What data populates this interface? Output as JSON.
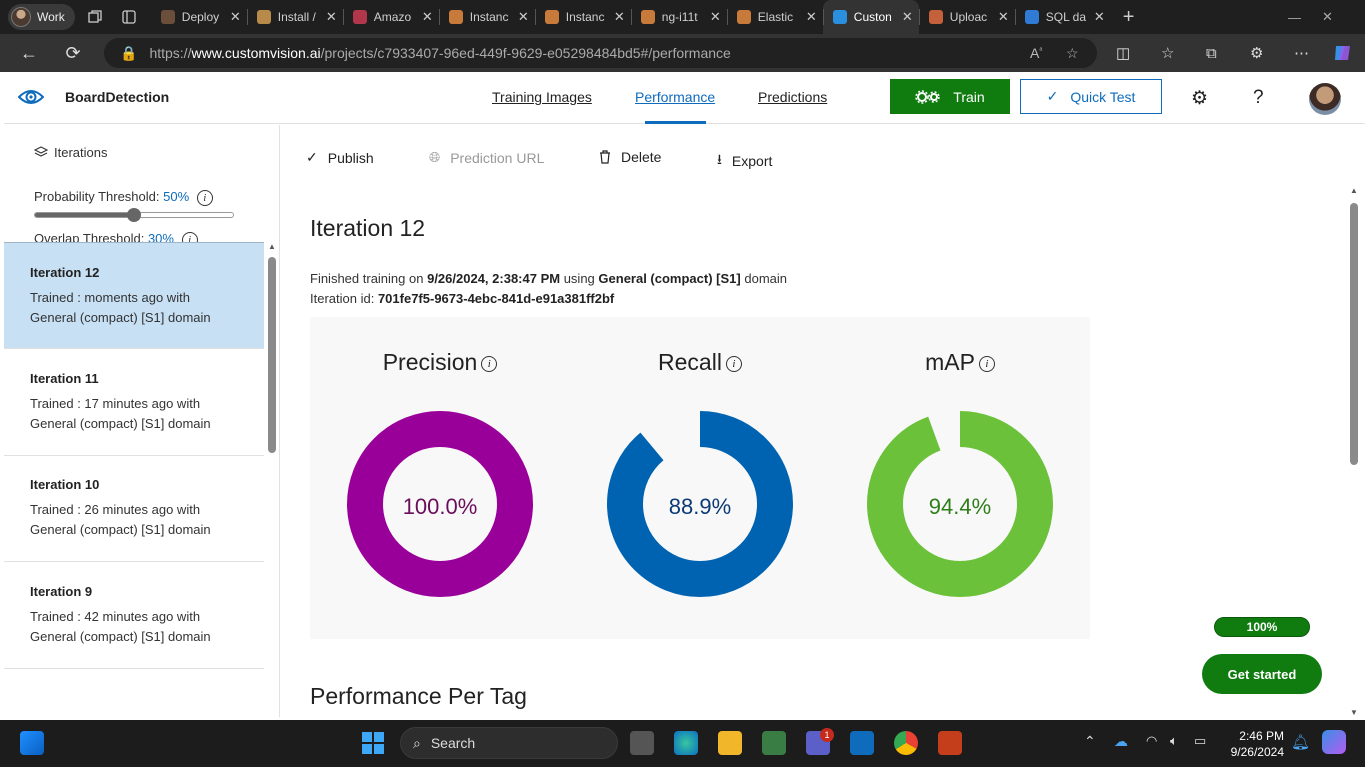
{
  "browser": {
    "profile_label": "Work",
    "tabs": [
      {
        "title": "Deploy",
        "color": "#6b4f3a"
      },
      {
        "title": "Install /",
        "color": "#b88a4a"
      },
      {
        "title": "Amazo",
        "color": "#b2374a"
      },
      {
        "title": "Instanc",
        "color": "#c77a3a"
      },
      {
        "title": "Instanc",
        "color": "#c77a3a"
      },
      {
        "title": "ng-i11t",
        "color": "#c77a3a"
      },
      {
        "title": "Elastic",
        "color": "#c77a3a"
      },
      {
        "title": "Custon",
        "color": "#2b8fe0"
      },
      {
        "title": "Uploac",
        "color": "#c4603a"
      },
      {
        "title": "SQL da",
        "color": "#2f7bd6"
      }
    ],
    "active_tab_index": 7,
    "url": {
      "prefix": "https://",
      "host": "www.customvision.ai",
      "path": "/projects/c7933407-96ed-449f-9629-e05298484bd5#/performance"
    }
  },
  "header": {
    "project_name": "BoardDetection",
    "nav": {
      "training_images": "Training Images",
      "performance": "Performance",
      "predictions": "Predictions"
    },
    "train_label": "Train",
    "quick_test_label": "Quick Test",
    "help_label": "?"
  },
  "sidebar": {
    "iterations_label": "Iterations",
    "probability": {
      "label": "Probability Threshold:",
      "value": "50%",
      "fraction": 0.5
    },
    "overlap": {
      "label": "Overlap Threshold:",
      "value": "30%",
      "fraction": 0.3
    },
    "iterations": [
      {
        "name": "Iteration 12",
        "line1": "Trained : moments ago with",
        "line2": "General (compact) [S1] domain",
        "selected": true
      },
      {
        "name": "Iteration 11",
        "line1": "Trained : 17 minutes ago with",
        "line2": "General (compact) [S1] domain",
        "selected": false
      },
      {
        "name": "Iteration 10",
        "line1": "Trained : 26 minutes ago with",
        "line2": "General (compact) [S1] domain",
        "selected": false
      },
      {
        "name": "Iteration 9",
        "line1": "Trained : 42 minutes ago with",
        "line2": "General (compact) [S1] domain",
        "selected": false
      }
    ]
  },
  "toolbar": {
    "publish": "Publish",
    "prediction_url": "Prediction URL",
    "delete": "Delete",
    "export": "Export"
  },
  "main": {
    "iteration_title": "Iteration 12",
    "finished_prefix": "Finished training on",
    "finished_date": "9/26/2024, 2:38:47 PM",
    "using_word": "using",
    "domain_name": "General (compact) [S1]",
    "domain_word": "domain",
    "iteration_id_label": "Iteration id:",
    "iteration_id": "701fe7f5-9673-4ebc-841d-e91a381ff2bf",
    "metrics": [
      {
        "label": "Precision",
        "value_text": "100.0%",
        "fraction": 1.0,
        "color": "#990099",
        "text_color": "#6a0d5a"
      },
      {
        "label": "Recall",
        "value_text": "88.9%",
        "fraction": 0.889,
        "color": "#0063b1",
        "text_color": "#0b3a75"
      },
      {
        "label": "mAP",
        "value_text": "94.4%",
        "fraction": 0.944,
        "color": "#6bc23a",
        "text_color": "#2f7d1a"
      }
    ],
    "performance_per_tag": "Performance Per Tag",
    "progress_label": "100%",
    "get_started_label": "Get started"
  },
  "taskbar": {
    "search_placeholder": "Search",
    "time": "2:46 PM",
    "date": "9/26/2024",
    "teams_badge": "1"
  }
}
